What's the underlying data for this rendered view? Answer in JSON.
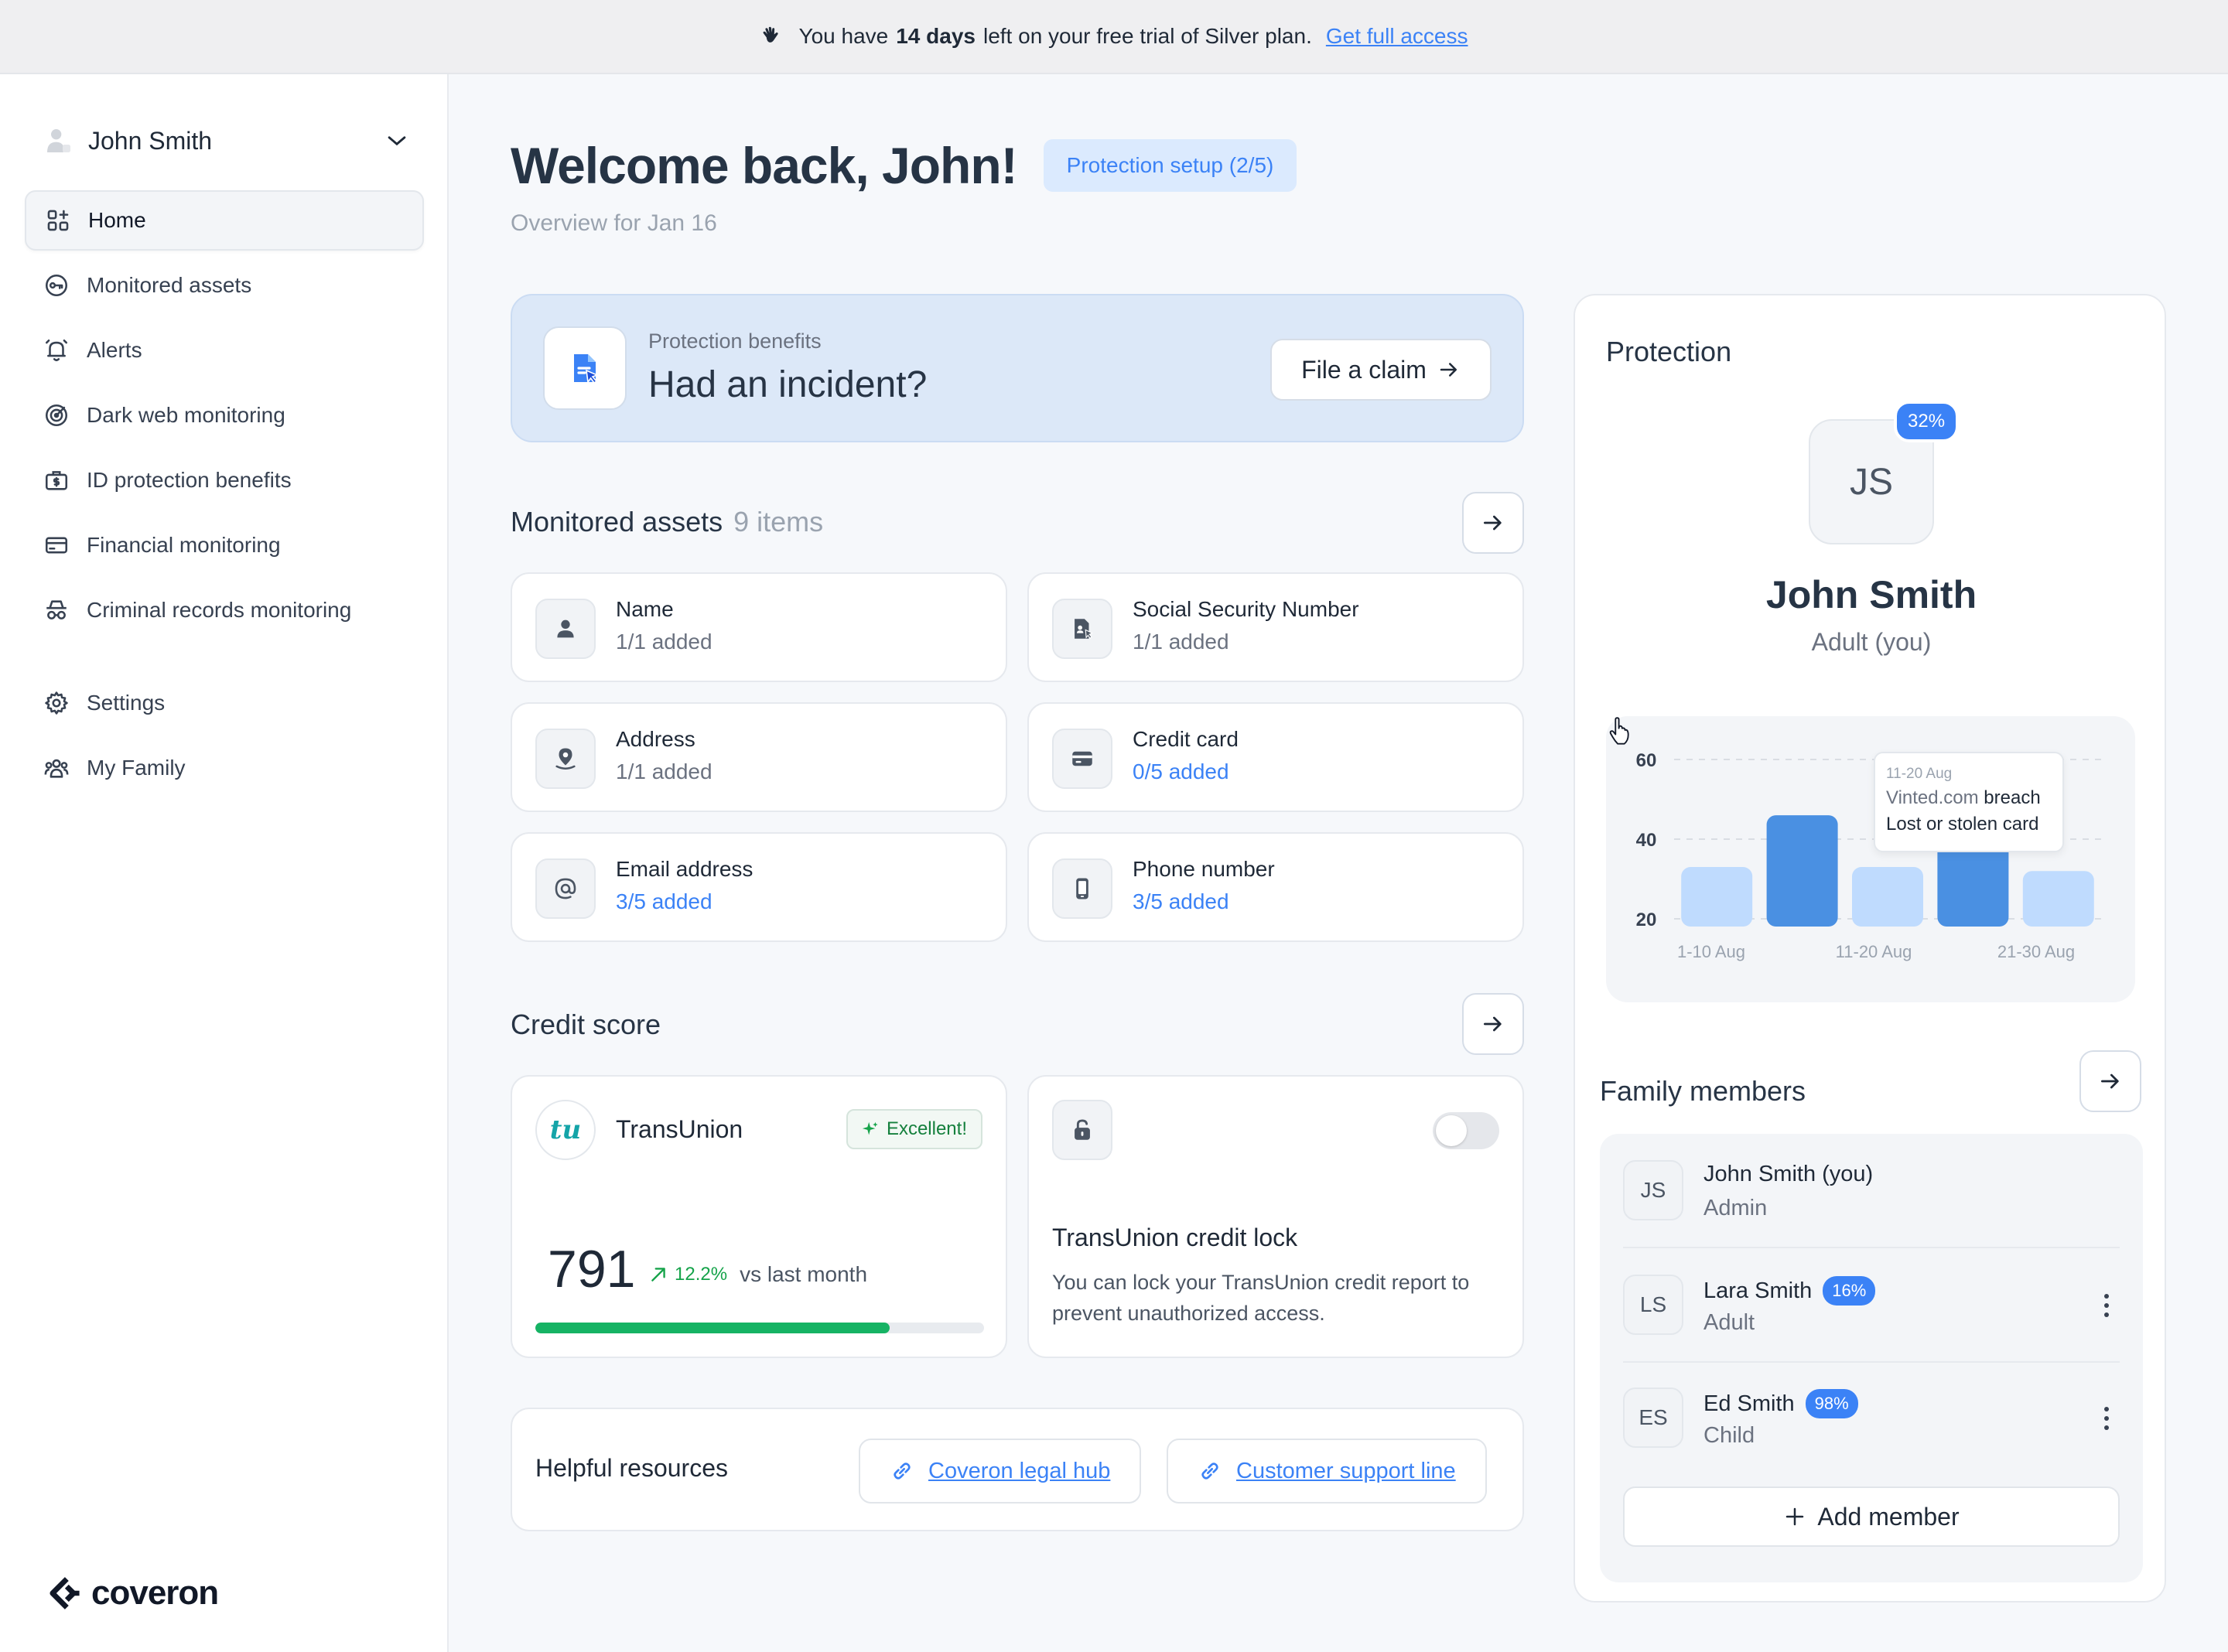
{
  "banner": {
    "text_before": "You have",
    "days": "14 days",
    "text_after": "left on your free trial of Silver plan.",
    "link": "Get full access"
  },
  "sidebar": {
    "user_name": "John Smith",
    "items": [
      {
        "label": "Home",
        "icon": "home-grid-icon",
        "active": true
      },
      {
        "label": "Monitored assets",
        "icon": "key-icon"
      },
      {
        "label": "Alerts",
        "icon": "bell-icon"
      },
      {
        "label": "Dark web monitoring",
        "icon": "radar-icon"
      },
      {
        "label": "ID protection benefits",
        "icon": "briefcase-dollar-icon"
      },
      {
        "label": "Financial monitoring",
        "icon": "credit-card-icon"
      },
      {
        "label": "Criminal records monitoring",
        "icon": "spy-icon"
      },
      {
        "label": "Settings",
        "icon": "gear-icon"
      },
      {
        "label": "My Family",
        "icon": "family-icon"
      }
    ],
    "logo": "coveron"
  },
  "header": {
    "title": "Welcome back, John!",
    "setup_badge": "Protection setup (2/5)",
    "subtitle": "Overview for Jan 16"
  },
  "incident": {
    "eyebrow": "Protection benefits",
    "heading": "Had an incident?",
    "button": "File a claim"
  },
  "monitored_assets": {
    "title": "Monitored assets",
    "count": "9 items",
    "items": [
      {
        "name": "Name",
        "status": "1/1 added",
        "complete": true,
        "icon": "person-icon"
      },
      {
        "name": "Social Security Number",
        "status": "1/1 added",
        "complete": true,
        "icon": "ssn-document-icon"
      },
      {
        "name": "Address",
        "status": "1/1 added",
        "complete": true,
        "icon": "location-pin-icon"
      },
      {
        "name": "Credit card",
        "status": "0/5 added",
        "complete": false,
        "icon": "credit-card-icon"
      },
      {
        "name": "Email address",
        "status": "3/5 added",
        "complete": false,
        "icon": "at-sign-icon"
      },
      {
        "name": "Phone number",
        "status": "3/5 added",
        "complete": false,
        "icon": "phone-icon"
      }
    ]
  },
  "credit_score": {
    "title": "Credit score",
    "bureau": "TransUnion",
    "rating": "Excellent!",
    "score": "791",
    "delta": "12.2%",
    "delta_suffix": "vs last month",
    "progress": 0.79,
    "lock_title": "TransUnion credit lock",
    "lock_description": "You can lock your TransUnion credit report to prevent unauthorized access.",
    "lock_enabled": false
  },
  "resources": {
    "label": "Helpful resources",
    "links": [
      "Coveron legal hub",
      "Customer support line"
    ]
  },
  "protection": {
    "title": "Protection",
    "initials": "JS",
    "percent": "32%",
    "name": "John Smith",
    "role": "Adult (you)",
    "tooltip": {
      "date": "11-20 Aug",
      "line1_strong": "Vinted.com",
      "line1_rest": "breach",
      "line2": "Lost or stolen card"
    }
  },
  "chart_data": {
    "type": "bar",
    "y_ticks": [
      "60",
      "40",
      "20"
    ],
    "ylim": [
      20,
      60
    ],
    "x_tick_labels": [
      "1-10 Aug",
      "11-20 Aug",
      "21-30 Aug"
    ],
    "values": [
      33,
      46,
      33,
      46,
      32
    ],
    "highlighted": [
      false,
      true,
      false,
      true,
      false
    ],
    "colors": {
      "light": "#bfdbfe",
      "highlight": "#4a90e2"
    }
  },
  "family": {
    "title": "Family members",
    "members": [
      {
        "initials": "JS",
        "name": "John Smith (you)",
        "role": "Admin",
        "badge": null,
        "menu": false
      },
      {
        "initials": "LS",
        "name": "Lara Smith",
        "role": "Adult",
        "badge": "16%",
        "menu": true
      },
      {
        "initials": "ES",
        "name": "Ed Smith",
        "role": "Child",
        "badge": "98%",
        "menu": true
      }
    ],
    "add_button": "Add member"
  }
}
